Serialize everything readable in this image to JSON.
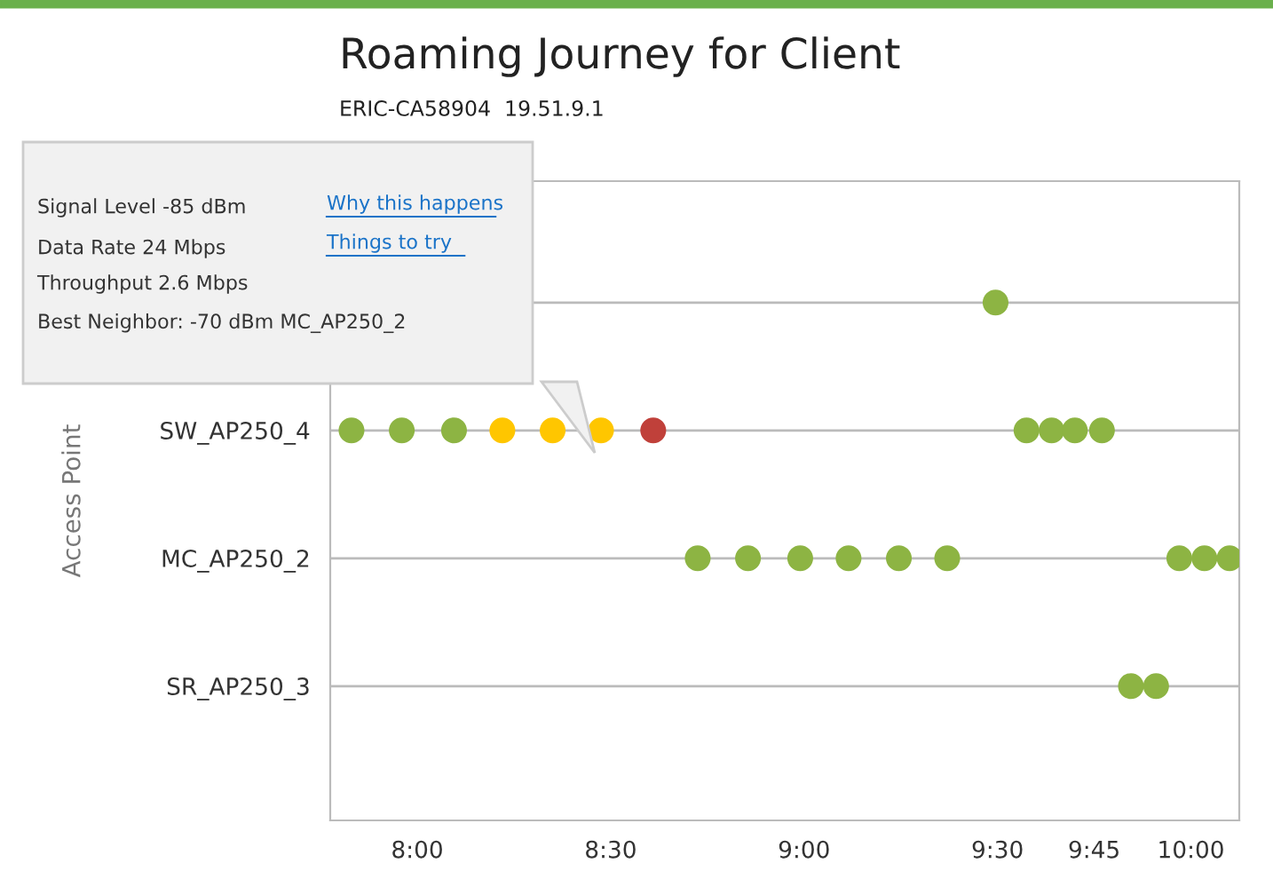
{
  "chart_data": {
    "type": "scatter",
    "orientation": "horizontal",
    "title": "Roaming Journey for Client",
    "subtitle": "ERIC-CA58904  19.51.9.1",
    "ylabel": "Access Point",
    "categories": [
      null,
      "SW_AP250_4",
      "MC_AP250_2",
      "SR_AP250_3"
    ],
    "series": [
      {
        "colors": [
          "#8db443",
          "#8db443",
          "#8db443",
          "#8db443"
        ],
        "values": [
          9.495,
          7.83,
          8.725,
          9.845
        ]
      },
      {
        "colors": [
          "#8db443",
          "#8db443",
          "#8db443",
          "#8db443"
        ],
        "values": [
          null,
          7.96,
          8.855,
          9.91
        ]
      },
      {
        "colors": [
          "#8db443",
          "#8db443",
          "#8db443",
          "#8db443"
        ],
        "values": [
          null,
          8.095,
          8.99,
          null
        ]
      },
      {
        "colors": [
          "#8db443",
          "#ffc600",
          "#8db443",
          "#8db443"
        ],
        "values": [
          null,
          8.22,
          9.115,
          null
        ]
      },
      {
        "colors": [
          "#8db443",
          "#ffc600",
          "#8db443",
          "#8db443"
        ],
        "values": [
          null,
          8.35,
          9.245,
          null
        ]
      },
      {
        "colors": [
          "#8db443",
          "#ffc600",
          "#8db443",
          "#8db443"
        ],
        "values": [
          null,
          8.475,
          9.37,
          null
        ]
      },
      {
        "colors": [
          "#8db443",
          "#c0403a",
          "#8db443",
          "#8db443"
        ],
        "values": [
          null,
          8.61,
          9.97,
          null
        ]
      },
      {
        "colors": [
          "#8db443",
          "#8db443",
          "#8db443",
          "#8db443"
        ],
        "values": [
          null,
          9.575,
          10.035,
          null
        ]
      },
      {
        "colors": [
          "#8db443",
          "#8db443",
          "#8db443",
          "#8db443"
        ],
        "values": [
          null,
          9.64,
          10.1,
          null
        ]
      },
      {
        "colors": [
          "#8db443",
          "#8db443",
          "#8db443",
          "#8db443"
        ],
        "values": [
          null,
          9.7,
          null,
          null
        ]
      },
      {
        "colors": [
          "#8db443",
          "#8db443",
          "#8db443",
          "#8db443"
        ],
        "values": [
          null,
          9.77,
          null,
          null
        ]
      }
    ],
    "xlim": [
      7.775,
      10.125
    ],
    "xticks": [
      {
        "value": 8,
        "label": "8:00"
      },
      {
        "value": 8.5,
        "label": "8:30"
      },
      {
        "value": 9,
        "label": "9:00"
      },
      {
        "value": 9.5,
        "label": "9:30"
      },
      {
        "value": 9.75,
        "label": "9:45"
      },
      {
        "value": 10,
        "label": "10:00"
      }
    ],
    "grid": "y",
    "marker": "circle",
    "annotations": [
      "Signal Level -85 dBm",
      "Data Rate 24 Mbps",
      "Throughput 2.6 Mbps",
      "Best Neighbor: -70 dBm MC_AP250_2",
      "Why this happens",
      "Things to try"
    ]
  }
}
